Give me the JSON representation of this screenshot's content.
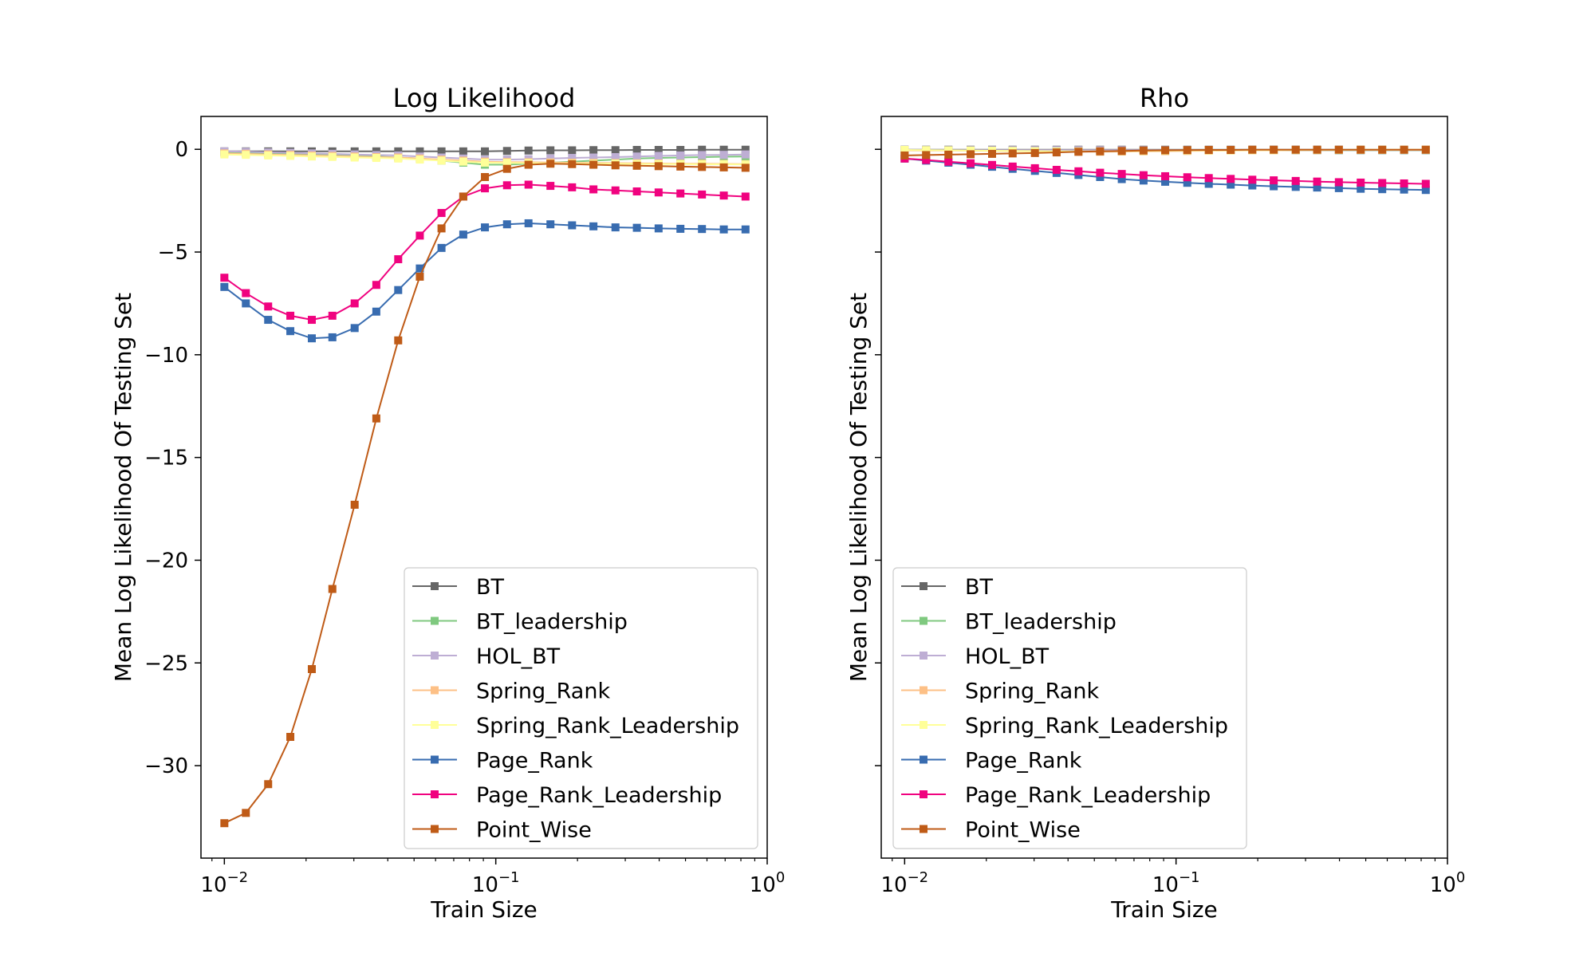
{
  "figure": {
    "xlabel": "Train Size",
    "ylabel": "Mean Log Likelihood Of Testing Set"
  },
  "chart_data": [
    {
      "type": "line",
      "title": "Log Likelihood",
      "xlabel": "Train Size",
      "ylabel": "Mean Log Likelihood Of Testing Set",
      "xscale": "log",
      "xlim": [
        0.0082,
        1.0
      ],
      "ylim": [
        -34.5,
        1.6
      ],
      "x_ticks": [
        0.01,
        0.1,
        1
      ],
      "x_tick_labels": [
        "10",
        "10",
        "10"
      ],
      "x_tick_exponents": [
        "−2",
        "−1",
        "0"
      ],
      "y_ticks": [
        0,
        -5,
        -10,
        -15,
        -20,
        -25,
        -30
      ],
      "y_tick_labels": [
        "0",
        "−5",
        "−10",
        "−15",
        "−20",
        "−25",
        "−30"
      ],
      "grid": false,
      "legend_position": "lower-right",
      "x": [
        0.01,
        0.012,
        0.0145,
        0.0175,
        0.021,
        0.025,
        0.0302,
        0.0363,
        0.0437,
        0.0525,
        0.0631,
        0.0759,
        0.0912,
        0.11,
        0.132,
        0.159,
        0.191,
        0.229,
        0.276,
        0.331,
        0.398,
        0.479,
        0.575,
        0.692,
        0.832
      ],
      "series": [
        {
          "name": "BT",
          "color": "#666666",
          "values": [
            -0.1,
            -0.1,
            -0.1,
            -0.1,
            -0.1,
            -0.1,
            -0.1,
            -0.1,
            -0.1,
            -0.1,
            -0.1,
            -0.1,
            -0.1,
            -0.08,
            -0.06,
            -0.05,
            -0.05,
            -0.04,
            -0.04,
            -0.03,
            -0.03,
            -0.03,
            -0.02,
            -0.02,
            -0.02
          ]
        },
        {
          "name": "BT_leadership",
          "color": "#7fc97f",
          "values": [
            -0.15,
            -0.17,
            -0.2,
            -0.22,
            -0.25,
            -0.28,
            -0.3,
            -0.35,
            -0.4,
            -0.45,
            -0.55,
            -0.65,
            -0.75,
            -0.75,
            -0.7,
            -0.65,
            -0.6,
            -0.55,
            -0.5,
            -0.45,
            -0.42,
            -0.4,
            -0.38,
            -0.36,
            -0.35
          ]
        },
        {
          "name": "HOL_BT",
          "color": "#beaed4",
          "values": [
            -0.1,
            -0.12,
            -0.15,
            -0.17,
            -0.2,
            -0.22,
            -0.25,
            -0.28,
            -0.3,
            -0.35,
            -0.4,
            -0.45,
            -0.5,
            -0.5,
            -0.48,
            -0.45,
            -0.42,
            -0.4,
            -0.38,
            -0.35,
            -0.32,
            -0.3,
            -0.28,
            -0.27,
            -0.25
          ]
        },
        {
          "name": "Spring_Rank",
          "color": "#fdc086",
          "values": [
            -0.2,
            -0.22,
            -0.25,
            -0.27,
            -0.3,
            -0.32,
            -0.35,
            -0.38,
            -0.4,
            -0.45,
            -0.5,
            -0.55,
            -0.6,
            -0.62,
            -0.63,
            -0.64,
            -0.65,
            -0.66,
            -0.67,
            -0.68,
            -0.69,
            -0.7,
            -0.7,
            -0.71,
            -0.72
          ]
        },
        {
          "name": "Spring_Rank_Leadership",
          "color": "#ffff99",
          "values": [
            -0.25,
            -0.27,
            -0.3,
            -0.32,
            -0.35,
            -0.37,
            -0.4,
            -0.42,
            -0.45,
            -0.5,
            -0.55,
            -0.6,
            -0.65,
            -0.66,
            -0.67,
            -0.68,
            -0.69,
            -0.7,
            -0.7,
            -0.71,
            -0.72,
            -0.72,
            -0.73,
            -0.73,
            -0.74
          ]
        },
        {
          "name": "Page_Rank",
          "color": "#386cb0",
          "values": [
            -6.7,
            -7.5,
            -8.3,
            -8.85,
            -9.2,
            -9.15,
            -8.7,
            -7.9,
            -6.85,
            -5.8,
            -4.8,
            -4.15,
            -3.8,
            -3.65,
            -3.6,
            -3.65,
            -3.7,
            -3.75,
            -3.8,
            -3.82,
            -3.85,
            -3.87,
            -3.88,
            -3.9,
            -3.9
          ]
        },
        {
          "name": "Page_Rank_Leadership",
          "color": "#f0027f",
          "values": [
            -6.25,
            -7.0,
            -7.65,
            -8.1,
            -8.3,
            -8.1,
            -7.5,
            -6.6,
            -5.35,
            -4.2,
            -3.1,
            -2.3,
            -1.9,
            -1.75,
            -1.72,
            -1.78,
            -1.85,
            -1.95,
            -2.0,
            -2.05,
            -2.1,
            -2.15,
            -2.2,
            -2.25,
            -2.3
          ]
        },
        {
          "name": "Point_Wise",
          "color": "#bf5b17",
          "values": [
            -32.8,
            -32.3,
            -30.9,
            -28.6,
            -25.3,
            -21.4,
            -17.3,
            -13.1,
            -9.3,
            -6.2,
            -3.85,
            -2.3,
            -1.35,
            -0.95,
            -0.75,
            -0.7,
            -0.72,
            -0.75,
            -0.78,
            -0.8,
            -0.82,
            -0.84,
            -0.86,
            -0.88,
            -0.9
          ]
        }
      ]
    },
    {
      "type": "line",
      "title": "Rho",
      "xlabel": "Train Size",
      "ylabel": "Mean Log Likelihood Of Testing Set",
      "xscale": "log",
      "xlim": [
        0.0082,
        1.0
      ],
      "ylim": [
        -34.5,
        1.6
      ],
      "x_ticks": [
        0.01,
        0.1,
        1
      ],
      "x_tick_labels": [
        "10",
        "10",
        "10"
      ],
      "x_tick_exponents": [
        "−2",
        "−1",
        "0"
      ],
      "y_ticks": [
        0,
        -5,
        -10,
        -15,
        -20,
        -25,
        -30
      ],
      "grid": false,
      "legend_position": "lower-left",
      "x": [
        0.01,
        0.012,
        0.0145,
        0.0175,
        0.021,
        0.025,
        0.0302,
        0.0363,
        0.0437,
        0.0525,
        0.0631,
        0.0759,
        0.0912,
        0.11,
        0.132,
        0.159,
        0.191,
        0.229,
        0.276,
        0.331,
        0.398,
        0.479,
        0.575,
        0.692,
        0.832
      ],
      "series": [
        {
          "name": "BT",
          "color": "#666666",
          "values": [
            -0.02,
            -0.02,
            -0.02,
            -0.02,
            -0.02,
            -0.02,
            -0.02,
            -0.02,
            -0.02,
            -0.02,
            -0.02,
            -0.02,
            -0.02,
            -0.02,
            -0.02,
            -0.02,
            -0.02,
            -0.02,
            -0.02,
            -0.02,
            -0.02,
            -0.02,
            -0.02,
            -0.02,
            -0.02
          ]
        },
        {
          "name": "BT_leadership",
          "color": "#7fc97f",
          "values": [
            -0.05,
            -0.05,
            -0.05,
            -0.05,
            -0.05,
            -0.05,
            -0.05,
            -0.05,
            -0.05,
            -0.05,
            -0.05,
            -0.05,
            -0.05,
            -0.05,
            -0.05,
            -0.05,
            -0.05,
            -0.05,
            -0.05,
            -0.05,
            -0.05,
            -0.05,
            -0.05,
            -0.05,
            -0.05
          ]
        },
        {
          "name": "HOL_BT",
          "color": "#beaed4",
          "values": [
            -0.04,
            -0.04,
            -0.04,
            -0.04,
            -0.04,
            -0.04,
            -0.04,
            -0.04,
            -0.04,
            -0.04,
            -0.04,
            -0.04,
            -0.04,
            -0.04,
            -0.04,
            -0.04,
            -0.04,
            -0.04,
            -0.04,
            -0.04,
            -0.04,
            -0.04,
            -0.04,
            -0.04,
            -0.04
          ]
        },
        {
          "name": "Spring_Rank",
          "color": "#fdc086",
          "values": [
            -0.05,
            -0.06,
            -0.06,
            -0.07,
            -0.08,
            -0.09,
            -0.1,
            -0.11,
            -0.12,
            -0.12,
            -0.11,
            -0.1,
            -0.09,
            -0.08,
            -0.07,
            -0.06,
            -0.05,
            -0.05,
            -0.04,
            -0.04,
            -0.03,
            -0.03,
            -0.03,
            -0.02,
            -0.02
          ]
        },
        {
          "name": "Spring_Rank_Leadership",
          "color": "#ffff99",
          "values": [
            -0.03,
            -0.04,
            -0.05,
            -0.06,
            -0.07,
            -0.08,
            -0.09,
            -0.1,
            -0.1,
            -0.1,
            -0.09,
            -0.08,
            -0.07,
            -0.06,
            -0.05,
            -0.05,
            -0.04,
            -0.04,
            -0.03,
            -0.03,
            -0.03,
            -0.02,
            -0.02,
            -0.02,
            -0.02
          ]
        },
        {
          "name": "Page_Rank",
          "color": "#386cb0",
          "values": [
            -0.45,
            -0.55,
            -0.65,
            -0.75,
            -0.85,
            -0.95,
            -1.05,
            -1.15,
            -1.25,
            -1.35,
            -1.45,
            -1.52,
            -1.58,
            -1.63,
            -1.68,
            -1.72,
            -1.76,
            -1.8,
            -1.83,
            -1.86,
            -1.89,
            -1.92,
            -1.94,
            -1.96,
            -1.98
          ]
        },
        {
          "name": "Page_Rank_Leadership",
          "color": "#f0027f",
          "values": [
            -0.45,
            -0.52,
            -0.6,
            -0.68,
            -0.76,
            -0.84,
            -0.92,
            -1.0,
            -1.07,
            -1.14,
            -1.2,
            -1.26,
            -1.31,
            -1.36,
            -1.4,
            -1.44,
            -1.48,
            -1.51,
            -1.54,
            -1.57,
            -1.6,
            -1.62,
            -1.64,
            -1.66,
            -1.68
          ]
        },
        {
          "name": "Point_Wise",
          "color": "#bf5b17",
          "values": [
            -0.3,
            -0.28,
            -0.26,
            -0.24,
            -0.22,
            -0.2,
            -0.18,
            -0.15,
            -0.12,
            -0.1,
            -0.08,
            -0.06,
            -0.05,
            -0.04,
            -0.03,
            -0.03,
            -0.02,
            -0.02,
            -0.02,
            -0.02,
            -0.02,
            -0.02,
            -0.02,
            -0.02,
            -0.02
          ]
        }
      ]
    }
  ]
}
